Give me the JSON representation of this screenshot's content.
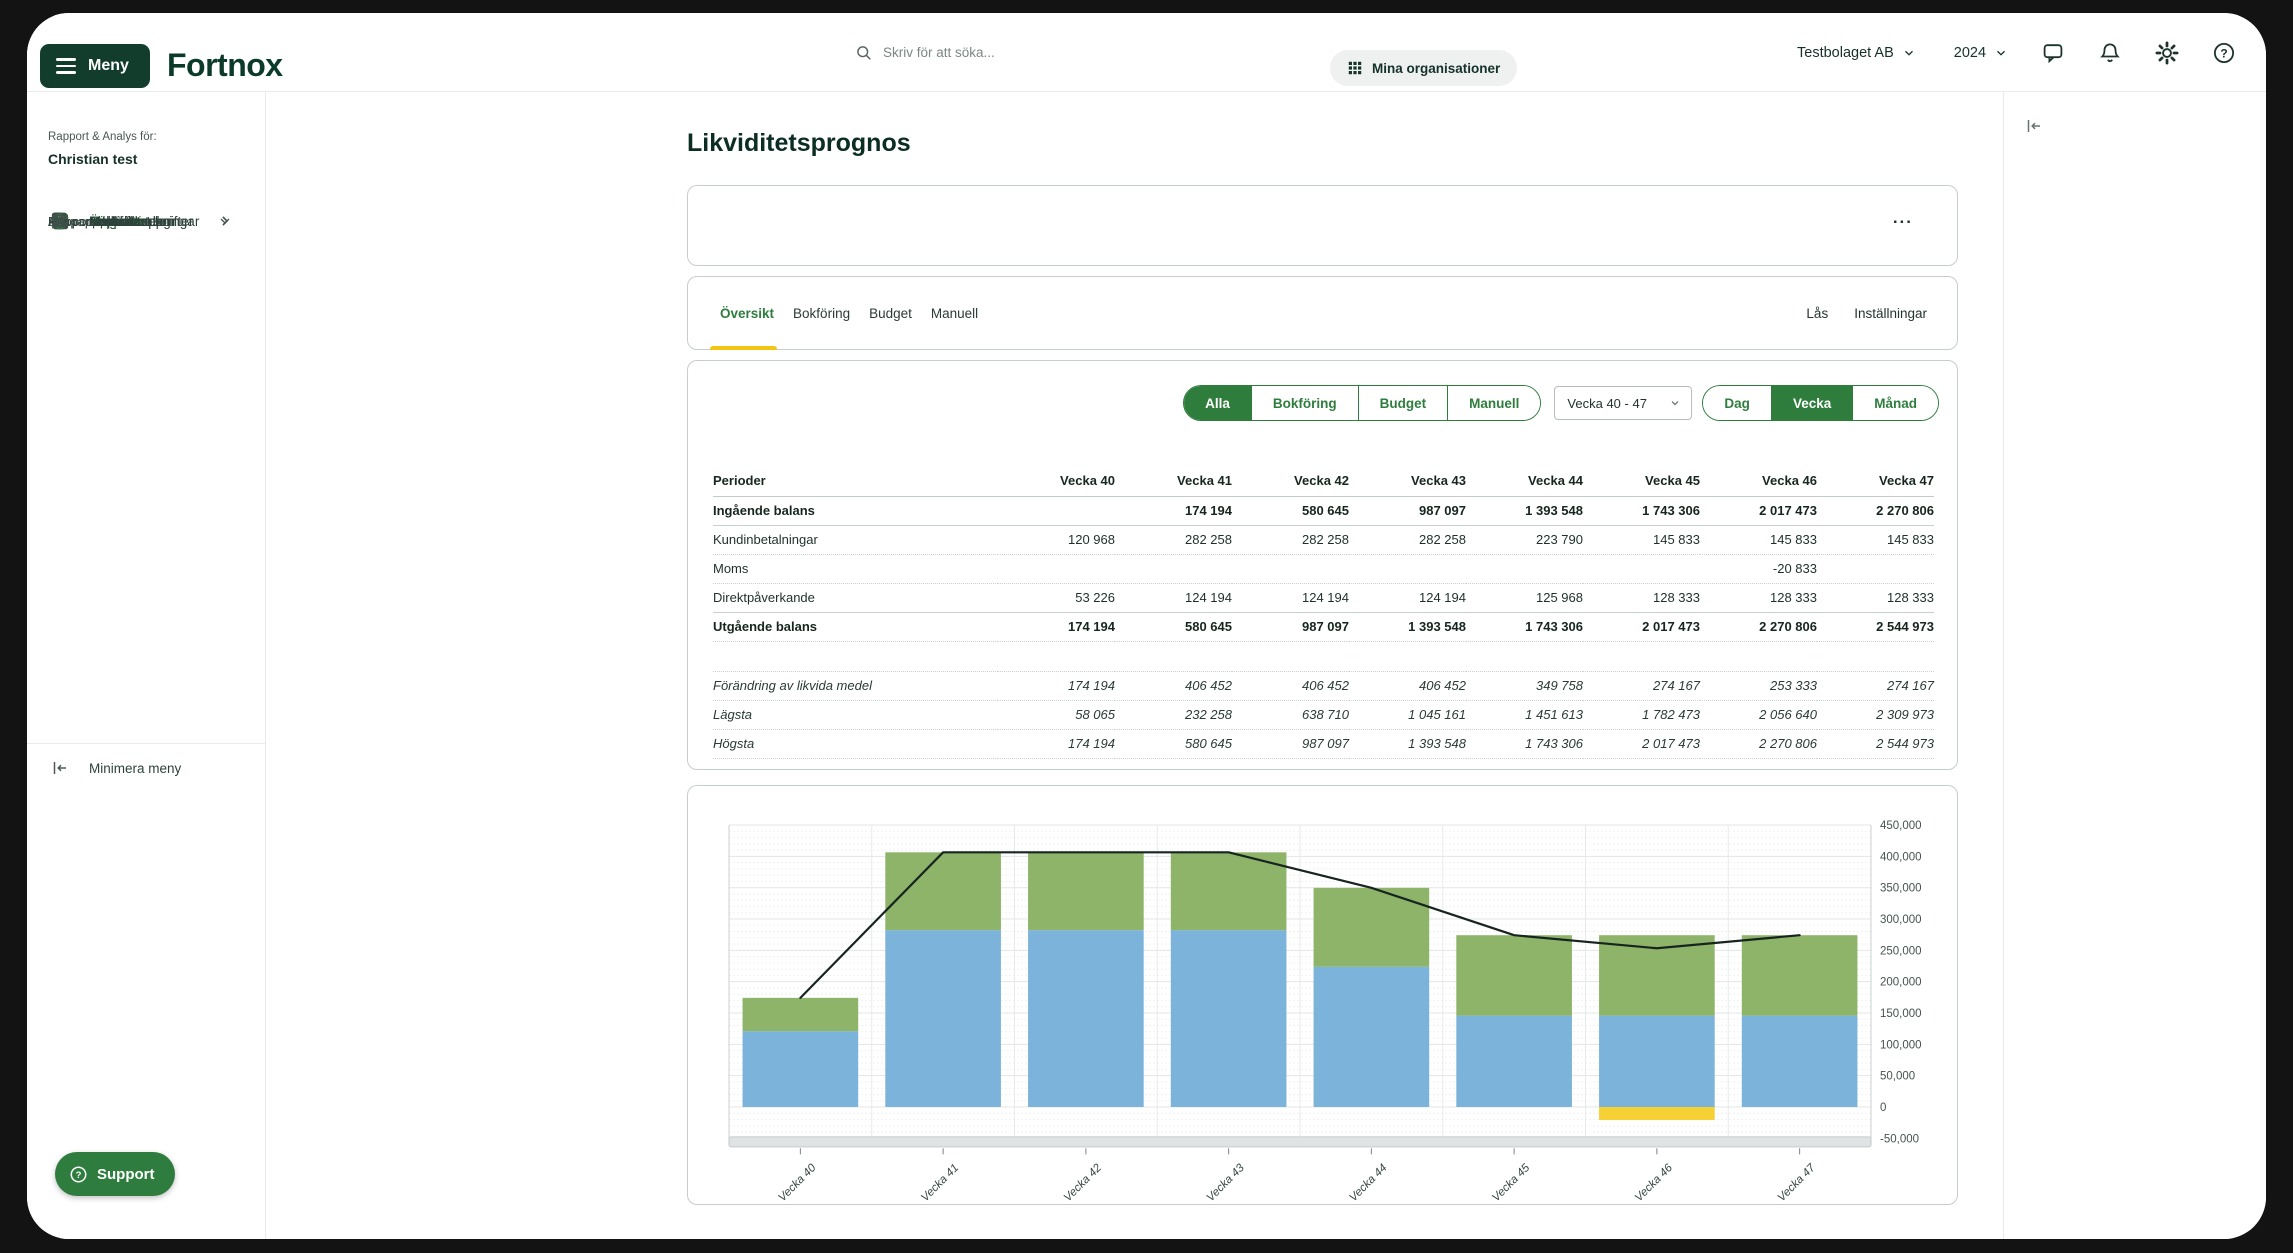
{
  "topbar": {
    "menu_label": "Meny",
    "logo": "Fortnox",
    "search_placeholder": "Skriv för att söka...",
    "org_switcher": "Mina organisationer",
    "company": "Testbolaget AB",
    "year": "2024",
    "icon_names": [
      "chat-icon",
      "bell-icon",
      "gear-icon",
      "help-icon"
    ]
  },
  "sidebar": {
    "context_label": "Rapport & Analys för:",
    "context_name": "Christian test",
    "items": [
      {
        "label": "Översikt",
        "icon": "overview",
        "type": "item"
      },
      {
        "label": "Att göra-uppgifter",
        "icon": "todo",
        "type": "item"
      },
      {
        "label": "Kontakter",
        "icon": "contacts",
        "type": "item"
      },
      {
        "label": "Dokument",
        "icon": "documents",
        "type": "item",
        "chevron": "right"
      },
      {
        "label": "Ekonomi",
        "icon": "economy",
        "type": "item",
        "chevron": "right",
        "green": true
      },
      {
        "label": "Rapporter",
        "icon": "reports",
        "type": "item",
        "chevron": "down",
        "green": true
      },
      {
        "label": "Rapportöversikt",
        "type": "sub"
      },
      {
        "label": "Alla rapporter",
        "type": "sub"
      },
      {
        "label": "Skapa rapport",
        "type": "sub"
      },
      {
        "label": "Rapportmallar",
        "type": "sub"
      },
      {
        "label": "Meddelanden",
        "icon": "messages",
        "type": "item"
      },
      {
        "label": "Mina anteckningar",
        "icon": "notes",
        "type": "item"
      },
      {
        "label": "Mallbibliotek",
        "icon": "templates",
        "type": "item"
      },
      {
        "label": "Administration",
        "icon": "admin",
        "type": "item",
        "chevron": "right"
      }
    ],
    "minimize_label": "Minimera meny",
    "support_label": "Support"
  },
  "main": {
    "title": "Likviditetsprognos",
    "info_card_more": "...",
    "tabs": [
      {
        "label": "Översikt",
        "active": true
      },
      {
        "label": "Bokföring",
        "active": false
      },
      {
        "label": "Budget",
        "active": false
      },
      {
        "label": "Manuell",
        "active": false
      }
    ],
    "tab_actions": [
      {
        "label": "Lås"
      },
      {
        "label": "Inställningar"
      }
    ],
    "filters": {
      "source_toggle": [
        {
          "label": "Alla",
          "active": true
        },
        {
          "label": "Bokföring",
          "active": false
        },
        {
          "label": "Budget",
          "active": false
        },
        {
          "label": "Manuell",
          "active": false
        }
      ],
      "period_select": "Vecka 40 - 47",
      "granularity_toggle": [
        {
          "label": "Dag",
          "active": false
        },
        {
          "label": "Vecka",
          "active": true
        },
        {
          "label": "Månad",
          "active": false
        }
      ]
    },
    "table": {
      "columns": [
        "Perioder",
        "Vecka 40",
        "Vecka 41",
        "Vecka 42",
        "Vecka 43",
        "Vecka 44",
        "Vecka 45",
        "Vecka 46",
        "Vecka 47"
      ],
      "rows": [
        {
          "label": "Ingående balans",
          "style": "bold",
          "divider": "solid",
          "values": [
            "",
            "174 194",
            "580 645",
            "987 097",
            "1 393 548",
            "1 743 306",
            "2 017 473",
            "2 270 806"
          ]
        },
        {
          "label": "Kundinbetalningar",
          "style": "normal",
          "divider": "dotted",
          "values": [
            "120 968",
            "282 258",
            "282 258",
            "282 258",
            "223 790",
            "145 833",
            "145 833",
            "145 833"
          ]
        },
        {
          "label": "Moms",
          "style": "normal",
          "divider": "dotted",
          "values": [
            "",
            "",
            "",
            "",
            "",
            "",
            "-20 833",
            ""
          ]
        },
        {
          "label": "Direktpåverkande",
          "style": "normal",
          "divider": "solid",
          "values": [
            "53 226",
            "124 194",
            "124 194",
            "124 194",
            "125 968",
            "128 333",
            "128 333",
            "128 333"
          ]
        },
        {
          "label": "Utgående balans",
          "style": "bold",
          "divider": "dotted",
          "values": [
            "174 194",
            "580 645",
            "987 097",
            "1 393 548",
            "1 743 306",
            "2 017 473",
            "2 270 806",
            "2 544 973"
          ]
        },
        {
          "label": "",
          "style": "spacer",
          "divider": "dotted",
          "values": [
            "",
            "",
            "",
            "",
            "",
            "",
            "",
            ""
          ]
        },
        {
          "label": "Förändring av likvida medel",
          "style": "italic",
          "divider": "dotted",
          "values": [
            "174 194",
            "406 452",
            "406 452",
            "406 452",
            "349 758",
            "274 167",
            "253 333",
            "274 167"
          ]
        },
        {
          "label": "Lägsta",
          "style": "italic",
          "divider": "dotted",
          "values": [
            "58 065",
            "232 258",
            "638 710",
            "1 045 161",
            "1 451 613",
            "1 782 473",
            "2 056 640",
            "2 309 973"
          ]
        },
        {
          "label": "Högsta",
          "style": "italic",
          "divider": "dotted",
          "values": [
            "174 194",
            "580 645",
            "987 097",
            "1 393 548",
            "1 743 306",
            "2 017 473",
            "2 270 806",
            "2 544 973"
          ]
        }
      ]
    }
  },
  "right_panel": {
    "collapse_icon": "collapse-left-icon"
  },
  "chart_data": {
    "type": "bar",
    "subtype": "stacked-bar-with-line",
    "categories": [
      "Vecka 40",
      "Vecka 41",
      "Vecka 42",
      "Vecka 43",
      "Vecka 44",
      "Vecka 45",
      "Vecka 46",
      "Vecka 47"
    ],
    "series": [
      {
        "name": "Kundinbetalningar",
        "type": "bar",
        "color": "#7cb3da",
        "values": [
          120968,
          282258,
          282258,
          282258,
          223790,
          145833,
          145833,
          145833
        ]
      },
      {
        "name": "Direktpåverkande",
        "type": "bar",
        "color": "#8db469",
        "values": [
          53226,
          124194,
          124194,
          124194,
          125968,
          128333,
          128333,
          128333
        ]
      },
      {
        "name": "Moms",
        "type": "bar",
        "color": "#f6d135",
        "values": [
          0,
          0,
          0,
          0,
          0,
          0,
          -20833,
          0
        ]
      },
      {
        "name": "Förändring av likvida medel",
        "type": "line",
        "color": "#172420",
        "values": [
          174194,
          406452,
          406452,
          406452,
          349758,
          274167,
          253333,
          274167
        ]
      }
    ],
    "ylim": [
      -50000,
      450000
    ],
    "ytick_step": 50000,
    "ytick_labels": [
      "-50,000",
      "0",
      "50,000",
      "100,000",
      "150,000",
      "200,000",
      "250,000",
      "300,000",
      "350,000",
      "400,000",
      "450,000"
    ],
    "grid": true,
    "y_axis_position": "right",
    "x_label_rotation": -45
  }
}
